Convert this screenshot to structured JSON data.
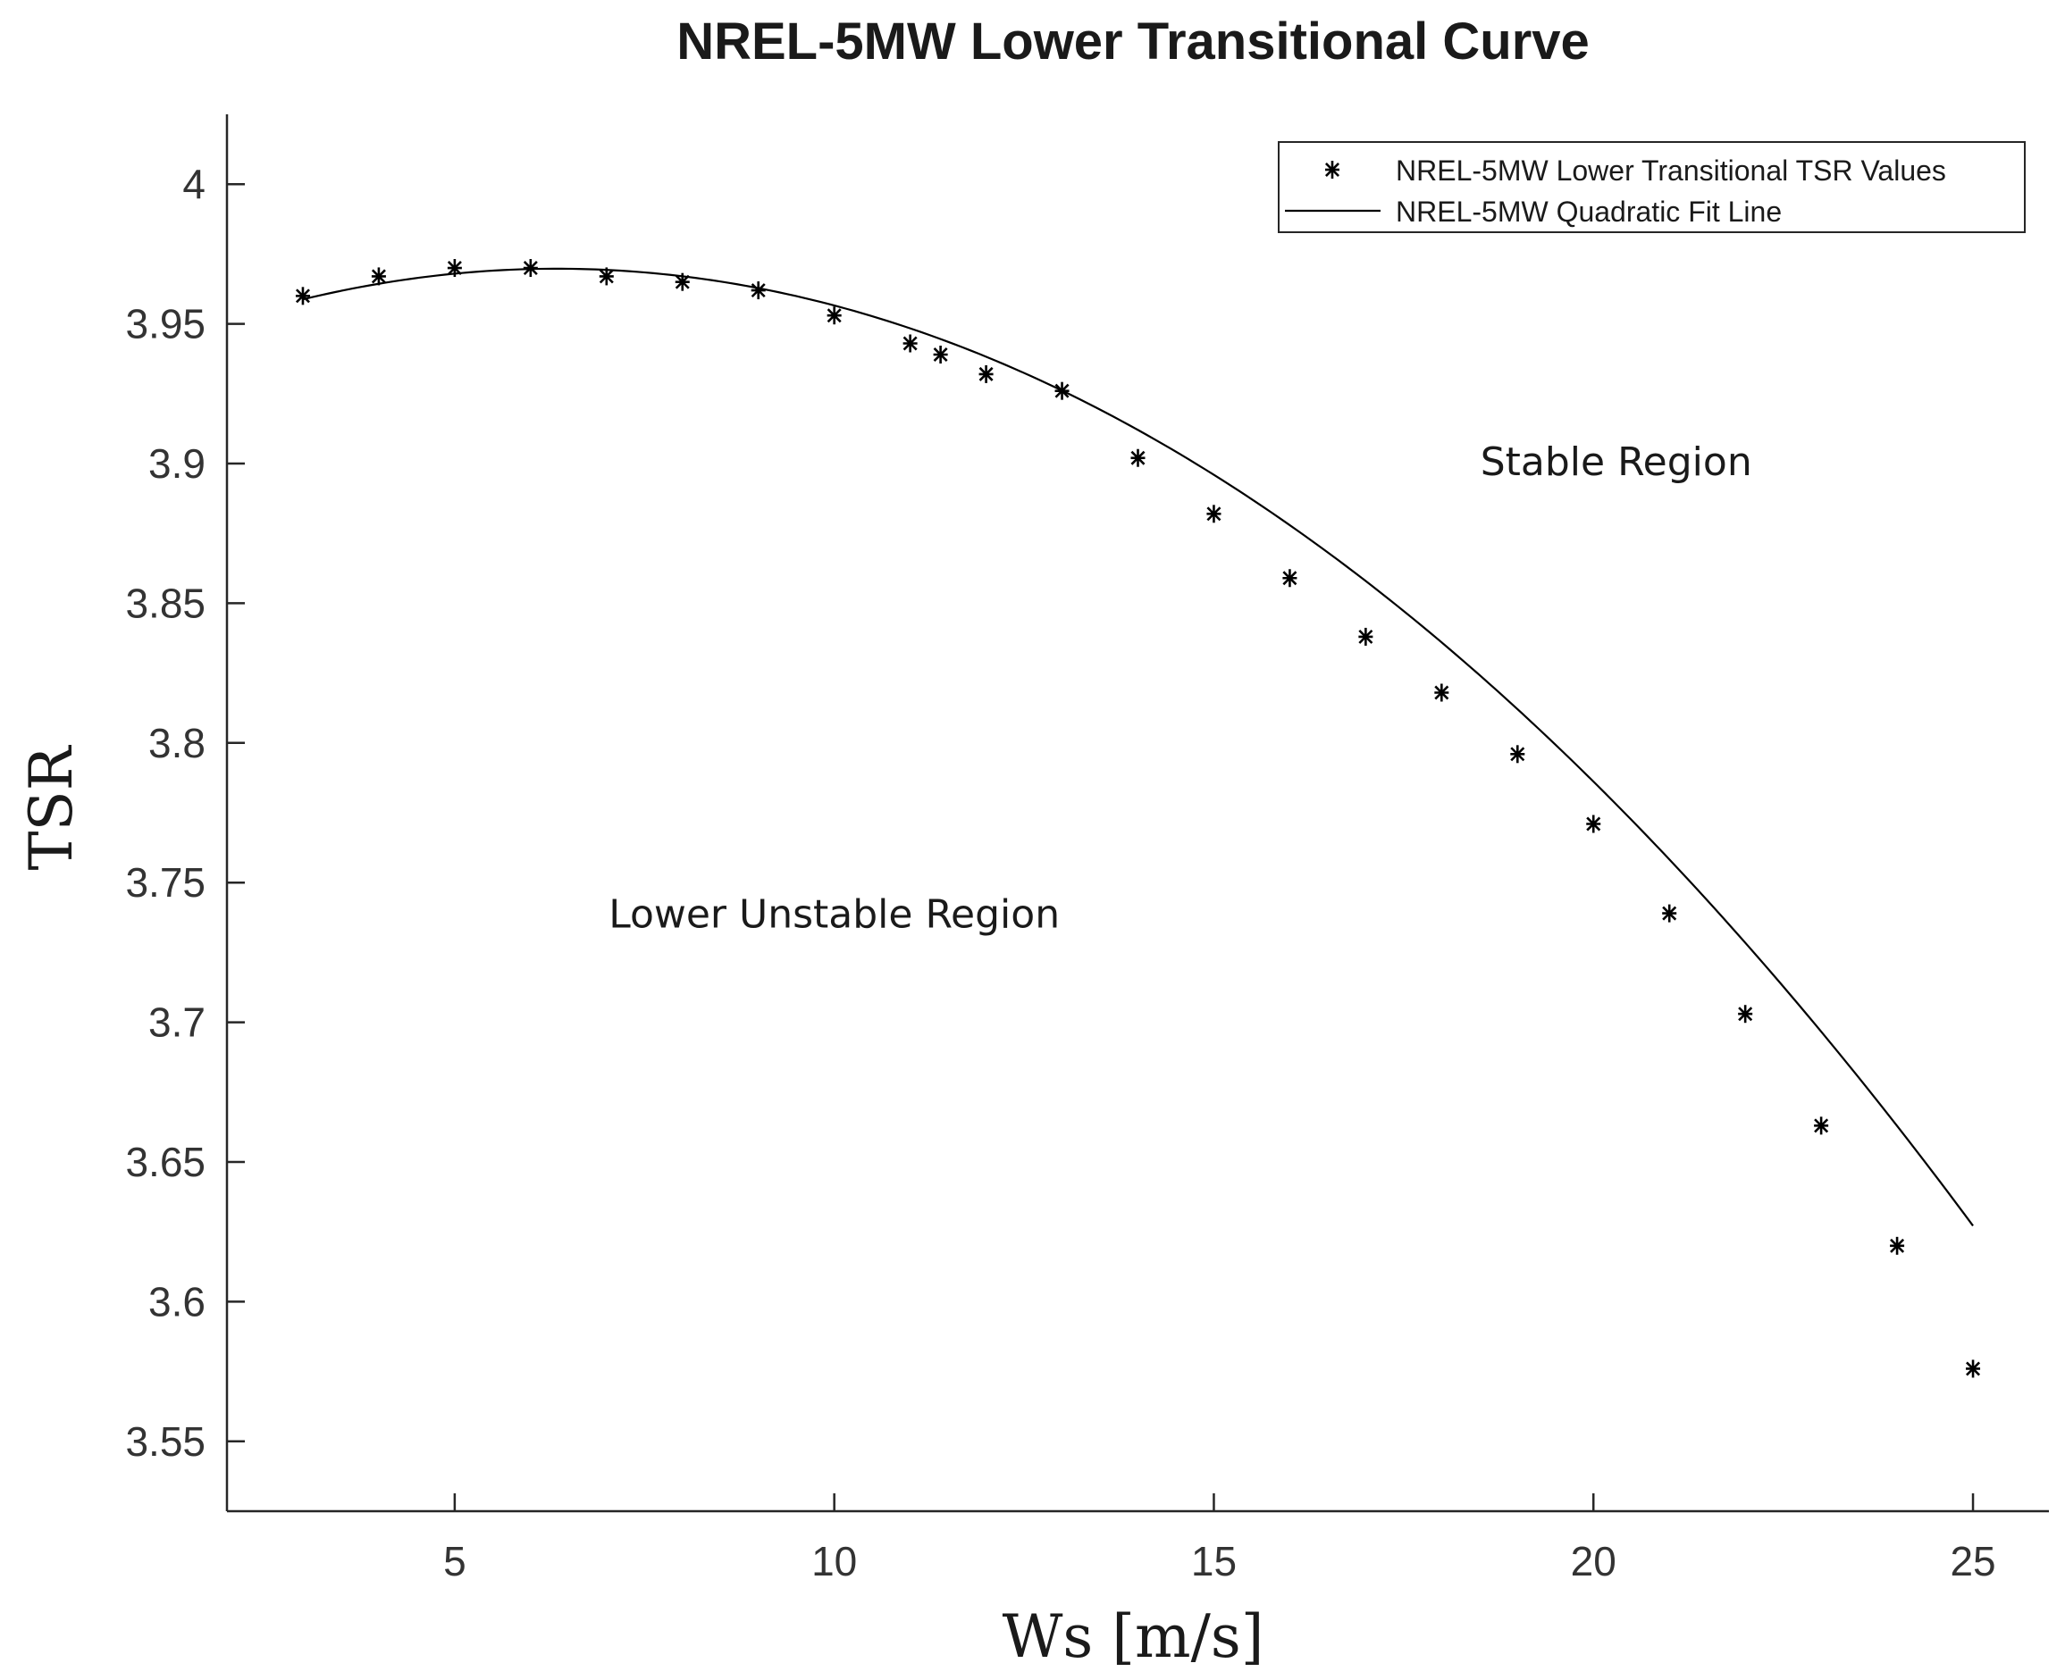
{
  "chart_data": {
    "type": "scatter",
    "title": "NREL-5MW Lower Transitional Curve",
    "xlabel": "Ws [m/s]",
    "ylabel": "TSR",
    "xlim": [
      2,
      26
    ],
    "ylim": [
      3.525,
      4.025
    ],
    "xticks": [
      5,
      10,
      15,
      20,
      25
    ],
    "xtick_labels": [
      "5",
      "10",
      "15",
      "20",
      "25"
    ],
    "yticks": [
      3.55,
      3.6,
      3.65,
      3.7,
      3.75,
      3.8,
      3.85,
      3.9,
      3.95,
      4.0
    ],
    "ytick_labels": [
      "3.55",
      "3.6",
      "3.65",
      "3.7",
      "3.75",
      "3.8",
      "3.85",
      "3.9",
      "3.95",
      "4"
    ],
    "series": [
      {
        "name": "NREL-5MW Lower Transitional TSR Values",
        "style": "asterisk-markers",
        "x": [
          3,
          4,
          5,
          6,
          7,
          8,
          9,
          10,
          11,
          11.4,
          12,
          13,
          14,
          15,
          16,
          17,
          18,
          19,
          20,
          21,
          22,
          23,
          24,
          25
        ],
        "y": [
          3.96,
          3.967,
          3.97,
          3.97,
          3.967,
          3.965,
          3.962,
          3.953,
          3.943,
          3.939,
          3.932,
          3.926,
          3.902,
          3.882,
          3.859,
          3.838,
          3.818,
          3.796,
          3.771,
          3.739,
          3.703,
          3.663,
          3.62,
          3.576
        ]
      },
      {
        "name": "NREL-5MW Quadratic Fit Line",
        "style": "line",
        "coefficients": {
          "a": -0.000984,
          "b": 0.01248,
          "c": 3.93017
        },
        "x_range": [
          3,
          25
        ]
      }
    ],
    "legend": {
      "position": "top-right"
    },
    "annotations": [
      {
        "text": "Stable Region",
        "x": 20.3,
        "y": 3.901
      },
      {
        "text": "Lower Unstable Region",
        "x": 10.0,
        "y": 3.739
      }
    ],
    "grid": false
  }
}
